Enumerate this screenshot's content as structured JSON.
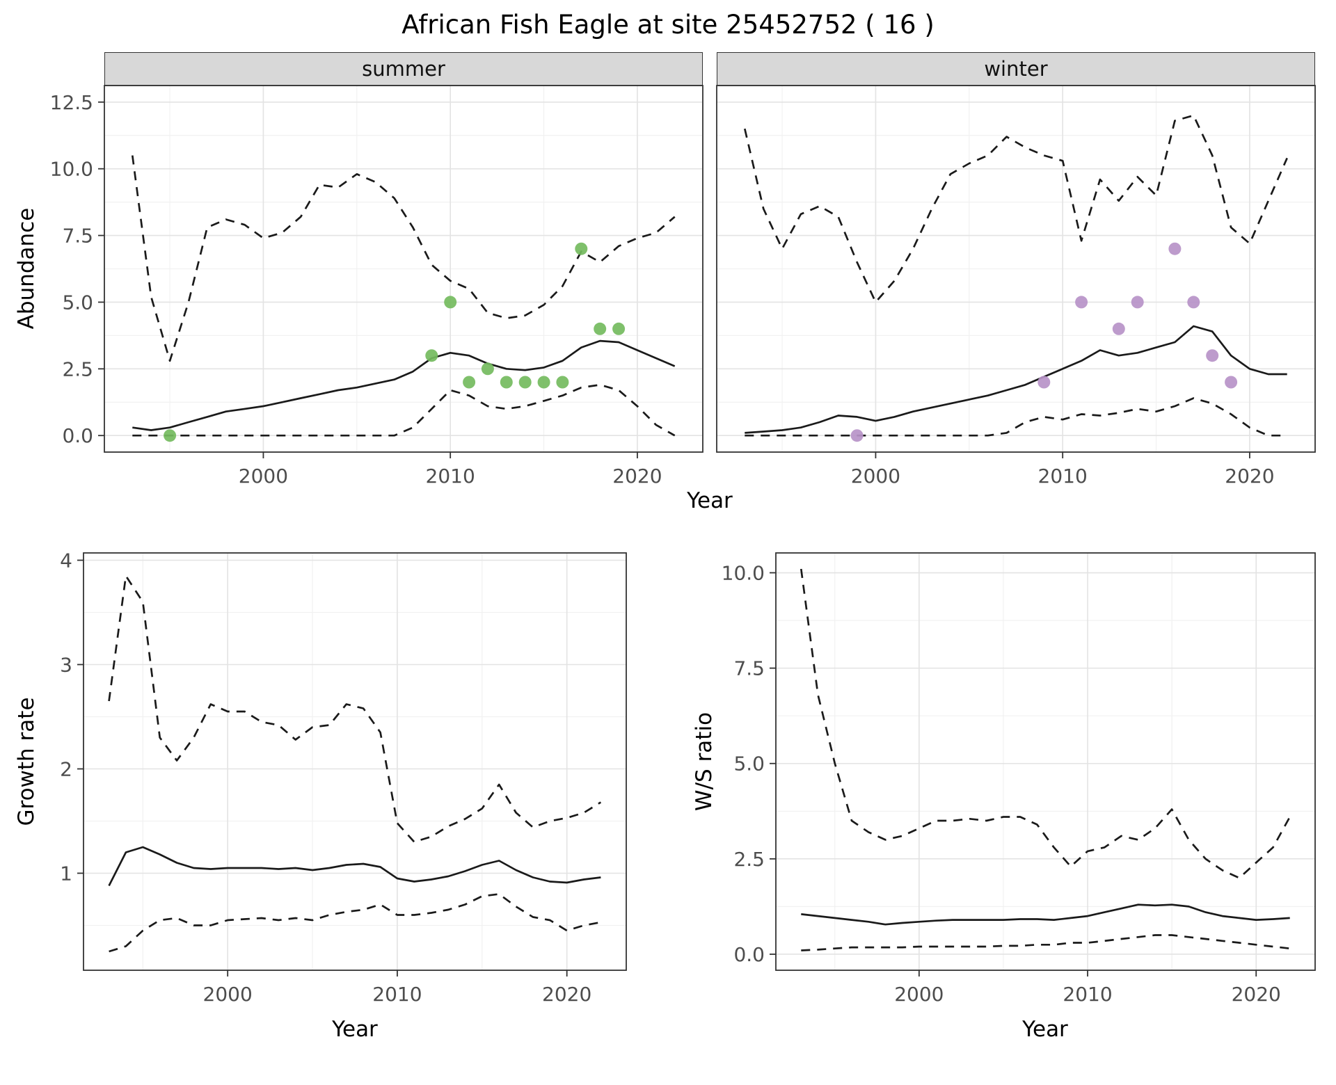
{
  "title": "African Fish Eagle at site 25452752 ( 16 )",
  "colors": {
    "line": "#1a1a1a",
    "grid_major": "#e3e3e3",
    "grid_minor": "#f1f1f1",
    "panel_border": "#333333",
    "strip_bg": "#d8d8d8",
    "tick_text": "#4d4d4d",
    "summer_points": "#74bb5e",
    "winter_points": "#b793c8"
  },
  "chart_data": [
    {
      "id": "abundance-summer",
      "type": "line",
      "facet_label": "summer",
      "xlabel": "Year",
      "ylabel": "Abundance",
      "xlim": [
        1991.5,
        2023.5
      ],
      "ylim": [
        -0.62,
        13.12
      ],
      "xticks": {
        "values": [
          2000,
          2010,
          2020
        ],
        "labels": [
          "2000",
          "2010",
          "2020"
        ]
      },
      "yticks": {
        "values": [
          0,
          2.5,
          5,
          7.5,
          10,
          12.5
        ],
        "labels": [
          "0.0",
          "2.5",
          "5.0",
          "7.5",
          "10.0",
          "12.5"
        ]
      },
      "grid": true,
      "legend": "none",
      "x": [
        1993,
        1994,
        1995,
        1996,
        1997,
        1998,
        1999,
        2000,
        2001,
        2002,
        2003,
        2004,
        2005,
        2006,
        2007,
        2008,
        2009,
        2010,
        2011,
        2012,
        2013,
        2014,
        2015,
        2016,
        2017,
        2018,
        2019,
        2020,
        2021,
        2022
      ],
      "series": [
        {
          "name": "estimate",
          "style": "solid",
          "values": [
            0.3,
            0.2,
            0.3,
            0.5,
            0.7,
            0.9,
            1.0,
            1.1,
            1.25,
            1.4,
            1.55,
            1.7,
            1.8,
            1.95,
            2.1,
            2.4,
            2.9,
            3.1,
            3.0,
            2.7,
            2.5,
            2.45,
            2.55,
            2.8,
            3.3,
            3.55,
            3.5,
            3.2,
            2.9,
            2.6
          ]
        },
        {
          "name": "upper_ci",
          "style": "dashed",
          "values": [
            10.5,
            5.2,
            2.8,
            5.0,
            7.8,
            8.1,
            7.9,
            7.4,
            7.6,
            8.2,
            9.4,
            9.3,
            9.8,
            9.5,
            8.9,
            7.8,
            6.4,
            5.8,
            5.5,
            4.6,
            4.4,
            4.5,
            4.9,
            5.6,
            6.9,
            6.5,
            7.1,
            7.4,
            7.6,
            8.2
          ]
        },
        {
          "name": "lower_ci",
          "style": "dashed",
          "values": [
            0,
            0,
            0,
            0,
            0,
            0,
            0,
            0,
            0,
            0,
            0,
            0,
            0,
            0,
            0,
            0.3,
            1.0,
            1.7,
            1.5,
            1.1,
            1.0,
            1.1,
            1.3,
            1.5,
            1.8,
            1.9,
            1.7,
            1.1,
            0.4,
            0
          ]
        }
      ],
      "points": {
        "color_key": "summer_points",
        "x": [
          1995,
          2009,
          2010,
          2011,
          2012,
          2013,
          2014,
          2015,
          2016,
          2017,
          2018,
          2019
        ],
        "y": [
          0,
          3,
          5,
          2,
          2.5,
          2,
          2,
          2,
          2,
          7,
          4,
          4
        ]
      }
    },
    {
      "id": "abundance-winter",
      "type": "line",
      "facet_label": "winter",
      "xlabel": "Year",
      "ylabel": "Abundance",
      "xlim": [
        1991.5,
        2023.5
      ],
      "ylim": [
        -0.62,
        13.12
      ],
      "xticks": {
        "values": [
          2000,
          2010,
          2020
        ],
        "labels": [
          "2000",
          "2010",
          "2020"
        ]
      },
      "yticks": {
        "values": [
          0,
          2.5,
          5,
          7.5,
          10,
          12.5
        ],
        "labels": [
          "0.0",
          "2.5",
          "5.0",
          "7.5",
          "10.0",
          "12.5"
        ]
      },
      "grid": true,
      "legend": "none",
      "x": [
        1993,
        1994,
        1995,
        1996,
        1997,
        1998,
        1999,
        2000,
        2001,
        2002,
        2003,
        2004,
        2005,
        2006,
        2007,
        2008,
        2009,
        2010,
        2011,
        2012,
        2013,
        2014,
        2015,
        2016,
        2017,
        2018,
        2019,
        2020,
        2021,
        2022
      ],
      "series": [
        {
          "name": "estimate",
          "style": "solid",
          "values": [
            0.1,
            0.15,
            0.2,
            0.3,
            0.5,
            0.75,
            0.7,
            0.55,
            0.7,
            0.9,
            1.05,
            1.2,
            1.35,
            1.5,
            1.7,
            1.9,
            2.2,
            2.5,
            2.8,
            3.2,
            3.0,
            3.1,
            3.3,
            3.5,
            4.1,
            3.9,
            3.0,
            2.5,
            2.3,
            2.3
          ]
        },
        {
          "name": "upper_ci",
          "style": "dashed",
          "values": [
            11.5,
            8.5,
            7.0,
            8.3,
            8.6,
            8.2,
            6.5,
            5.0,
            5.8,
            7.0,
            8.5,
            9.8,
            10.2,
            10.5,
            11.2,
            10.8,
            10.5,
            10.3,
            7.3,
            9.6,
            8.8,
            9.7,
            9.0,
            11.8,
            12.0,
            10.5,
            7.8,
            7.2,
            8.8,
            10.4
          ]
        },
        {
          "name": "lower_ci",
          "style": "dashed",
          "values": [
            0,
            0,
            0,
            0,
            0,
            0,
            0,
            0,
            0,
            0,
            0,
            0,
            0,
            0,
            0.1,
            0.5,
            0.7,
            0.6,
            0.8,
            0.75,
            0.85,
            1.0,
            0.9,
            1.1,
            1.4,
            1.2,
            0.8,
            0.3,
            0,
            0
          ]
        }
      ],
      "points": {
        "color_key": "winter_points",
        "x": [
          1999,
          2009,
          2011,
          2013,
          2014,
          2016,
          2017,
          2018,
          2019
        ],
        "y": [
          0,
          2,
          5,
          4,
          5,
          7,
          5,
          3,
          2
        ]
      }
    },
    {
      "id": "growth-rate",
      "type": "line",
      "facet_label": "",
      "xlabel": "Year",
      "ylabel": "Growth rate",
      "xlim": [
        1991.5,
        2023.5
      ],
      "ylim": [
        0.07,
        4.07
      ],
      "xticks": {
        "values": [
          2000,
          2010,
          2020
        ],
        "labels": [
          "2000",
          "2010",
          "2020"
        ]
      },
      "yticks": {
        "values": [
          1,
          2,
          3,
          4
        ],
        "labels": [
          "1",
          "2",
          "3",
          "4"
        ]
      },
      "grid": true,
      "legend": "none",
      "x": [
        1993,
        1994,
        1995,
        1996,
        1997,
        1998,
        1999,
        2000,
        2001,
        2002,
        2003,
        2004,
        2005,
        2006,
        2007,
        2008,
        2009,
        2010,
        2011,
        2012,
        2013,
        2014,
        2015,
        2016,
        2017,
        2018,
        2019,
        2020,
        2021,
        2022
      ],
      "series": [
        {
          "name": "estimate",
          "style": "solid",
          "values": [
            0.88,
            1.2,
            1.25,
            1.18,
            1.1,
            1.05,
            1.04,
            1.05,
            1.05,
            1.05,
            1.04,
            1.05,
            1.03,
            1.05,
            1.08,
            1.09,
            1.06,
            0.95,
            0.92,
            0.94,
            0.97,
            1.02,
            1.08,
            1.12,
            1.03,
            0.96,
            0.92,
            0.91,
            0.94,
            0.96
          ]
        },
        {
          "name": "upper_ci",
          "style": "dashed",
          "values": [
            2.65,
            3.85,
            3.6,
            2.3,
            2.08,
            2.3,
            2.62,
            2.55,
            2.55,
            2.45,
            2.42,
            2.28,
            2.4,
            2.42,
            2.62,
            2.58,
            2.35,
            1.48,
            1.3,
            1.35,
            1.45,
            1.52,
            1.62,
            1.85,
            1.58,
            1.44,
            1.5,
            1.53,
            1.58,
            1.68
          ]
        },
        {
          "name": "lower_ci",
          "style": "dashed",
          "values": [
            0.25,
            0.3,
            0.45,
            0.55,
            0.57,
            0.5,
            0.5,
            0.55,
            0.56,
            0.57,
            0.55,
            0.57,
            0.55,
            0.6,
            0.63,
            0.65,
            0.7,
            0.6,
            0.6,
            0.62,
            0.65,
            0.7,
            0.78,
            0.8,
            0.68,
            0.58,
            0.55,
            0.45,
            0.5,
            0.53
          ]
        }
      ],
      "points": null
    },
    {
      "id": "ws-ratio",
      "type": "line",
      "facet_label": "",
      "xlabel": "Year",
      "ylabel": "W/S ratio",
      "xlim": [
        1991.5,
        2023.5
      ],
      "ylim": [
        -0.42,
        10.52
      ],
      "xticks": {
        "values": [
          2000,
          2010,
          2020
        ],
        "labels": [
          "2000",
          "2010",
          "2020"
        ]
      },
      "yticks": {
        "values": [
          0,
          2.5,
          5,
          7.5,
          10
        ],
        "labels": [
          "0.0",
          "2.5",
          "5.0",
          "7.5",
          "10.0"
        ]
      },
      "grid": true,
      "legend": "none",
      "x": [
        1993,
        1994,
        1995,
        1996,
        1997,
        1998,
        1999,
        2000,
        2001,
        2002,
        2003,
        2004,
        2005,
        2006,
        2007,
        2008,
        2009,
        2010,
        2011,
        2012,
        2013,
        2014,
        2015,
        2016,
        2017,
        2018,
        2019,
        2020,
        2021,
        2022
      ],
      "series": [
        {
          "name": "estimate",
          "style": "solid",
          "values": [
            1.05,
            1.0,
            0.95,
            0.9,
            0.85,
            0.78,
            0.82,
            0.85,
            0.88,
            0.9,
            0.9,
            0.9,
            0.9,
            0.92,
            0.92,
            0.9,
            0.95,
            1.0,
            1.1,
            1.2,
            1.3,
            1.28,
            1.3,
            1.25,
            1.1,
            1.0,
            0.95,
            0.9,
            0.92,
            0.95
          ]
        },
        {
          "name": "upper_ci",
          "style": "dashed",
          "values": [
            10.1,
            6.8,
            5.0,
            3.5,
            3.2,
            3.0,
            3.1,
            3.3,
            3.5,
            3.5,
            3.55,
            3.5,
            3.6,
            3.6,
            3.4,
            2.8,
            2.3,
            2.7,
            2.8,
            3.1,
            3.0,
            3.3,
            3.8,
            3.0,
            2.5,
            2.2,
            2.0,
            2.4,
            2.8,
            3.6
          ]
        },
        {
          "name": "lower_ci",
          "style": "dashed",
          "values": [
            0.1,
            0.12,
            0.15,
            0.18,
            0.18,
            0.18,
            0.18,
            0.2,
            0.2,
            0.2,
            0.2,
            0.2,
            0.22,
            0.22,
            0.25,
            0.25,
            0.3,
            0.3,
            0.35,
            0.4,
            0.45,
            0.5,
            0.5,
            0.45,
            0.4,
            0.35,
            0.3,
            0.25,
            0.2,
            0.15
          ]
        }
      ],
      "points": null
    }
  ]
}
